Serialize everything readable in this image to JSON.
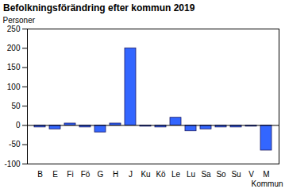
{
  "chart_data": {
    "type": "bar",
    "title": "Befolkningsförändring efter kommun 2019",
    "y_label": "Personer",
    "x_label": "Kommun",
    "categories": [
      "B",
      "E",
      "Fi",
      "Fö",
      "G",
      "H",
      "J",
      "Ku",
      "Kö",
      "Le",
      "Lu",
      "Sa",
      "So",
      "Su",
      "V",
      "M"
    ],
    "values": [
      -5,
      -10,
      5,
      -5,
      -18,
      5,
      200,
      -3,
      -5,
      20,
      -15,
      -10,
      -5,
      -5,
      -3,
      -65
    ],
    "color": "#3366ff",
    "ylim": [
      -100,
      250
    ],
    "yticks": [
      -100,
      -50,
      0,
      50,
      100,
      150,
      200,
      250
    ],
    "grid": false
  }
}
